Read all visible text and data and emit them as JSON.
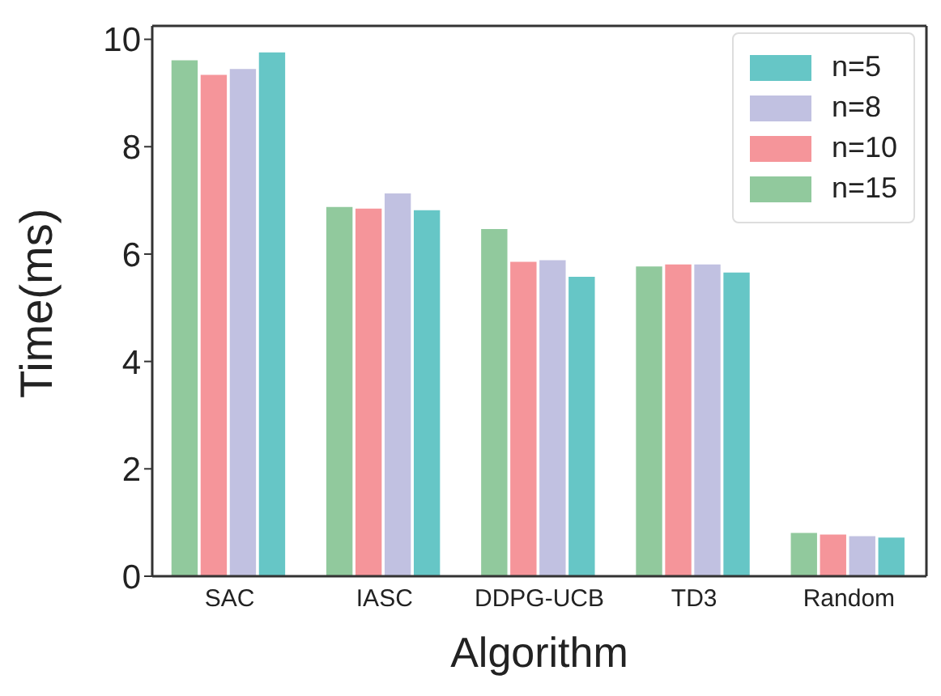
{
  "chart_data": {
    "type": "bar",
    "xlabel": "Algorithm",
    "ylabel": "Time(ms)",
    "categories": [
      "SAC",
      "IASC",
      "DDPG-UCB",
      "TD3",
      "Random"
    ],
    "series": [
      {
        "name": "n=15",
        "color": "#91c99d",
        "values": [
          9.62,
          6.89,
          6.48,
          5.78,
          0.82
        ]
      },
      {
        "name": "n=10",
        "color": "#f5959a",
        "values": [
          9.35,
          6.86,
          5.87,
          5.82,
          0.79
        ]
      },
      {
        "name": "n=8",
        "color": "#c1c1e1",
        "values": [
          9.46,
          7.14,
          5.9,
          5.82,
          0.76
        ]
      },
      {
        "name": "n=5",
        "color": "#66c6c6",
        "values": [
          9.77,
          6.83,
          5.59,
          5.67,
          0.73
        ]
      }
    ],
    "ylim": [
      0,
      10.25
    ],
    "yticks": [
      0,
      2,
      4,
      6,
      8,
      10
    ],
    "grid": false,
    "legend": "top right"
  }
}
